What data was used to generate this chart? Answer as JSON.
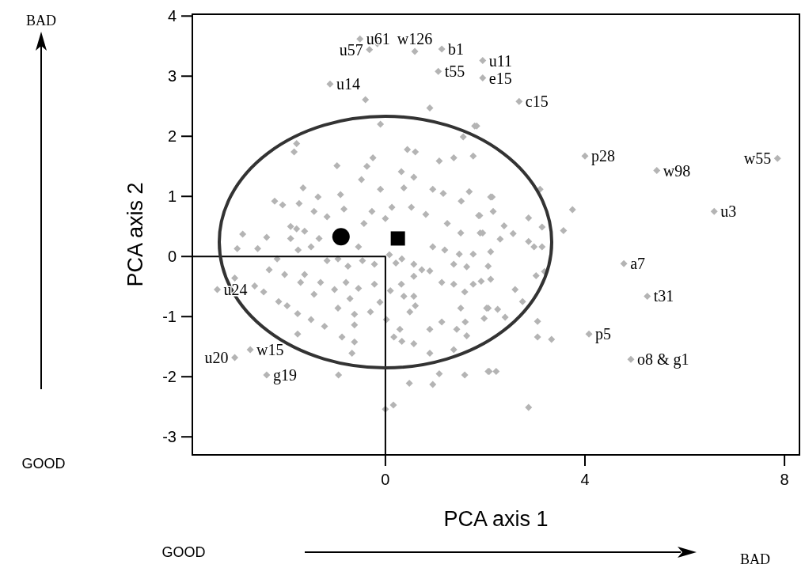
{
  "chart_data": {
    "type": "scatter",
    "xlabel": "PCA axis 1",
    "ylabel": "PCA axis 2",
    "xlim": [
      -3.87,
      8.3
    ],
    "ylim": [
      -3.3,
      4.03
    ],
    "xticks": [
      0,
      4,
      8
    ],
    "yticks": [
      -3,
      -2,
      -1,
      0,
      1,
      2,
      3,
      4
    ],
    "series": [
      {
        "color": "#b4b4b4",
        "marker": "diamond",
        "x": [
          -0.51,
          0.59,
          1.13,
          -1.11,
          -0.32,
          -0.16,
          1.06,
          1.95,
          1.95,
          2.68,
          4.0,
          5.44,
          7.86,
          6.59,
          4.78,
          5.25,
          4.08,
          4.92,
          2.87,
          -3.37,
          -2.71,
          -3.02,
          -2.38,
          0,
          0.16,
          -0.4,
          -0.1,
          0.89,
          1.79,
          1.56,
          -1.78,
          -1.83,
          0.44,
          0.6,
          -0.25,
          1.08,
          1.37,
          1.76,
          -0.97,
          -0.37,
          0.32,
          0.57,
          -0.48,
          -1.65,
          -0.1,
          0.37,
          0.95,
          1.16,
          1.52,
          1.68,
          -0.9,
          -2.22,
          -2.06,
          -1.35,
          -1.73,
          -1.43,
          -1.17,
          -0.83,
          -0.27,
          0.13,
          0.52,
          0.81,
          1.24,
          1.51,
          1.9,
          1.87,
          0.0,
          -0.43,
          -1.9,
          -2.86,
          2.11,
          2.14,
          2.16,
          1.89,
          2.38,
          2.56,
          2.87,
          3.1,
          3.75,
          3.57,
          3.14,
          1.83,
          1.95,
          2.3,
          2.87,
          2.98,
          3.14,
          2.11,
          2.06,
          1.92,
          2.11,
          2.6,
          3.02,
          3.19,
          2.06,
          2.25,
          1.98,
          2.4,
          2.75,
          3.05,
          3.05,
          3.33,
          2.08,
          2.22,
          -2.38,
          -2.97,
          -2.56,
          -1.9,
          -1.78,
          -1.62,
          -1.33,
          -2.17,
          -1.75,
          -1.49,
          -1.17,
          -0.95,
          -0.75,
          -0.54,
          -0.46,
          -0.22,
          -2.33,
          -2.02,
          -1.62,
          -1.3,
          -2.62,
          -3.02,
          -2.44,
          -1.7,
          -1.43,
          -1.02,
          -0.79,
          -0.54,
          -0.22,
          -0.71,
          -2.14,
          -1.97,
          -1.76,
          -1.49,
          -1.22,
          -0.95,
          -0.62,
          -0.62,
          -0.3,
          -0.11,
          -1.76,
          -0.87,
          -0.62,
          -0.67,
          -0.94,
          0.08,
          0.21,
          0.33,
          0.57,
          0.73,
          0.89,
          0.57,
          0.32,
          0.1,
          0.37,
          0.57,
          0.6,
          0.49,
          0.02,
          0.29,
          0.17,
          0.33,
          0.57,
          0.89,
          1.13,
          1.43,
          1.6,
          1.63,
          1.37,
          0.89,
          1.08,
          1.59,
          0.48,
          0.95,
          2.06,
          1.13,
          1.37,
          1.76,
          1.59,
          1.51,
          2.03,
          1.37,
          1.63,
          1.48,
          1.76,
          1.19,
          0.95
        ],
        "values": [
          3.62,
          3.41,
          3.45,
          2.87,
          3.44,
          3.54,
          3.08,
          3.26,
          2.97,
          2.58,
          1.67,
          1.43,
          1.63,
          0.75,
          -0.12,
          -0.66,
          -1.29,
          -1.71,
          -2.51,
          -0.55,
          -1.55,
          -1.68,
          -1.97,
          -2.54,
          -2.47,
          2.61,
          2.2,
          2.47,
          2.17,
          1.99,
          1.88,
          1.74,
          1.78,
          1.74,
          1.64,
          1.59,
          1.64,
          1.67,
          1.51,
          1.5,
          1.41,
          1.32,
          1.28,
          1.14,
          1.12,
          1.14,
          1.12,
          1.05,
          0.92,
          1.08,
          1.03,
          0.92,
          0.86,
          0.99,
          0.88,
          0.75,
          0.66,
          0.79,
          0.75,
          0.82,
          0.82,
          0.7,
          0.55,
          0.39,
          0.39,
          0.68,
          0.63,
          0.55,
          0.5,
          0.37,
          0.99,
          0.99,
          0.75,
          0.68,
          0.51,
          0.38,
          0.64,
          1.12,
          0.78,
          0.43,
          0.49,
          2.17,
          0.39,
          0.29,
          0.25,
          0.16,
          0.16,
          0.08,
          -0.16,
          -0.41,
          -0.38,
          -0.55,
          -0.32,
          -0.25,
          -0.86,
          -0.88,
          -1.03,
          -1.01,
          -0.75,
          -1.08,
          -1.34,
          -1.38,
          -1.91,
          -1.91,
          0.32,
          0.13,
          0.13,
          0.3,
          0.46,
          0.42,
          0.3,
          -0.04,
          0.11,
          0.16,
          -0.07,
          -0.04,
          -0.16,
          0.16,
          -0.07,
          -0.13,
          -0.22,
          -0.3,
          -0.3,
          -0.43,
          -0.49,
          -0.36,
          -0.59,
          -0.43,
          -0.63,
          -0.55,
          -0.43,
          -0.53,
          -0.46,
          -0.7,
          -0.75,
          -0.82,
          -0.95,
          -1.05,
          -1.16,
          -0.86,
          -0.96,
          -1.14,
          -0.92,
          -0.76,
          -1.29,
          -1.34,
          -1.42,
          -1.61,
          -1.97,
          0.03,
          -0.11,
          -0.04,
          -0.13,
          -0.22,
          -0.24,
          -0.33,
          -0.46,
          -0.57,
          -0.66,
          -0.66,
          -0.82,
          -0.92,
          -1.05,
          -1.21,
          -1.34,
          -1.41,
          -1.45,
          -1.21,
          -1.09,
          -1.21,
          -1.09,
          -1.32,
          -1.55,
          -1.61,
          -1.95,
          -1.97,
          -2.11,
          -2.13,
          -1.91,
          -0.43,
          -0.46,
          -0.46,
          -0.59,
          -0.86,
          -0.86,
          -0.13,
          -0.17,
          0.04,
          0.04,
          0.11,
          0.16
        ]
      },
      {
        "type": "line",
        "color": "#000000",
        "marker": "none",
        "x": [
          -3.87,
          0,
          0
        ],
        "values": [
          0,
          0,
          -3.3
        ]
      },
      {
        "type": "scatter",
        "color": "#000000",
        "marker": "circle",
        "x": [
          -0.89
        ],
        "values": [
          0.33
        ]
      },
      {
        "type": "scatter",
        "color": "#000000",
        "marker": "square",
        "x": [
          0.25
        ],
        "values": [
          0.3
        ]
      }
    ],
    "annotations": [
      {
        "text": "u61",
        "x": -0.51,
        "y": 3.62
      },
      {
        "text": "w126",
        "x": 0.59,
        "y": 3.41
      },
      {
        "text": "b1",
        "x": 1.13,
        "y": 3.45
      },
      {
        "text": "u14",
        "x": -1.11,
        "y": 2.87
      },
      {
        "text": "u57",
        "x": -0.32,
        "y": 3.44
      },
      {
        "text": "t55",
        "x": 1.06,
        "y": 3.08
      },
      {
        "text": "u11",
        "x": 1.95,
        "y": 3.26
      },
      {
        "text": "e15",
        "x": 1.95,
        "y": 2.97
      },
      {
        "text": "c15",
        "x": 2.68,
        "y": 2.58
      },
      {
        "text": "p28",
        "x": 4.0,
        "y": 1.67
      },
      {
        "text": "w98",
        "x": 5.44,
        "y": 1.43
      },
      {
        "text": "w55",
        "x": 7.86,
        "y": 1.63
      },
      {
        "text": "u3",
        "x": 6.59,
        "y": 0.75
      },
      {
        "text": "a7",
        "x": 4.78,
        "y": -0.12
      },
      {
        "text": "t31",
        "x": 5.25,
        "y": -0.66
      },
      {
        "text": "p5",
        "x": 4.08,
        "y": -1.29
      },
      {
        "text": "o8 & g1",
        "x": 4.92,
        "y": -1.71
      },
      {
        "text": "u24",
        "x": -3.37,
        "y": -0.55
      },
      {
        "text": "w15",
        "x": -2.71,
        "y": -1.55
      },
      {
        "text": "u20",
        "x": -3.02,
        "y": -1.68
      },
      {
        "text": "g19",
        "x": -2.38,
        "y": -1.97
      },
      "BAD",
      "GOOD",
      "GOOD",
      "BAD"
    ]
  }
}
